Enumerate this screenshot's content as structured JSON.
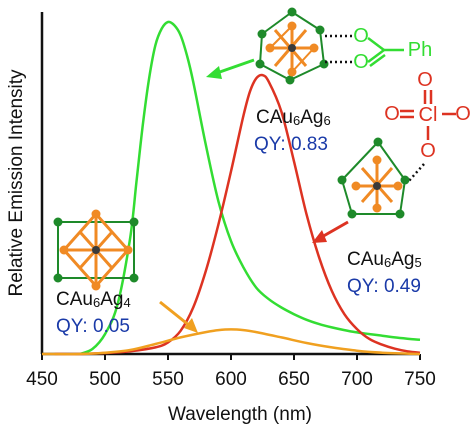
{
  "chart_data": {
    "type": "line",
    "xlabel": "Wavelength (nm)",
    "ylabel": "Relative Emission Intensity",
    "xlim": [
      450,
      750
    ],
    "ylim": [
      0,
      1.0
    ],
    "x_ticks": [
      "450",
      "500",
      "550",
      "600",
      "650",
      "700",
      "750"
    ],
    "grid": false,
    "legend": "none",
    "series": [
      {
        "color": "#33dd33",
        "x": [
          480,
          490,
          500,
          510,
          520,
          525,
          530,
          535,
          540,
          545,
          550,
          555,
          560,
          565,
          570,
          580,
          590,
          600,
          610,
          620,
          630,
          640,
          650,
          660,
          670,
          680,
          690,
          700,
          710,
          720,
          730,
          740,
          750
        ],
        "values": [
          0.0,
          0.015,
          0.06,
          0.15,
          0.35,
          0.52,
          0.69,
          0.83,
          0.93,
          0.98,
          1.0,
          0.99,
          0.96,
          0.9,
          0.82,
          0.63,
          0.46,
          0.34,
          0.26,
          0.2,
          0.165,
          0.14,
          0.12,
          0.103,
          0.09,
          0.08,
          0.072,
          0.065,
          0.06,
          0.055,
          0.05,
          0.046,
          0.043
        ]
      },
      {
        "color": "#dd3322",
        "x": [
          460,
          480,
          500,
          520,
          540,
          550,
          560,
          570,
          580,
          590,
          600,
          610,
          615,
          620,
          625,
          630,
          640,
          650,
          660,
          670,
          680,
          690,
          700,
          710,
          720,
          730,
          740,
          750
        ],
        "values": [
          0.0,
          0.0,
          0.003,
          0.008,
          0.02,
          0.035,
          0.07,
          0.14,
          0.25,
          0.39,
          0.55,
          0.72,
          0.79,
          0.83,
          0.84,
          0.82,
          0.73,
          0.58,
          0.42,
          0.29,
          0.19,
          0.12,
          0.075,
          0.045,
          0.028,
          0.016,
          0.008,
          0.004
        ]
      },
      {
        "color": "#f0a020",
        "x": [
          450,
          480,
          500,
          520,
          540,
          560,
          580,
          590,
          600,
          610,
          620,
          640,
          660,
          680,
          700,
          720,
          750
        ],
        "values": [
          0.0,
          0.0,
          0.004,
          0.012,
          0.03,
          0.05,
          0.066,
          0.072,
          0.074,
          0.072,
          0.066,
          0.05,
          0.033,
          0.02,
          0.01,
          0.004,
          0.0
        ]
      }
    ],
    "annotations": [
      {
        "cluster": "CAu6Ag6",
        "cluster_parts": [
          "CAu",
          "6",
          "Ag",
          "6"
        ],
        "qy": "QY: 0.83",
        "ligand": "benzoate",
        "ligand_labels": [
          "O",
          "O",
          "Ph"
        ],
        "arrow_color": "#33dd33"
      },
      {
        "cluster": "CAu6Ag5",
        "cluster_parts": [
          "CAu",
          "6",
          "Ag",
          "5"
        ],
        "qy": "QY: 0.49",
        "ligand": "perchlorate",
        "ligand_labels": [
          "O",
          "Cl",
          "O",
          "O",
          "O"
        ],
        "arrow_color": "#dd3322"
      },
      {
        "cluster": "CAu6Ag4",
        "cluster_parts": [
          "CAu",
          "6",
          "Ag",
          "4"
        ],
        "qy": "QY: 0.05",
        "arrow_color": "#f0a020"
      }
    ],
    "colors": {
      "qy_text": "#1a3aa8",
      "ligand_green": "#33dd33",
      "ligand_red": "#dd3322",
      "au_atom": "#f08a24",
      "ag_atom": "#1e8a2a"
    }
  }
}
